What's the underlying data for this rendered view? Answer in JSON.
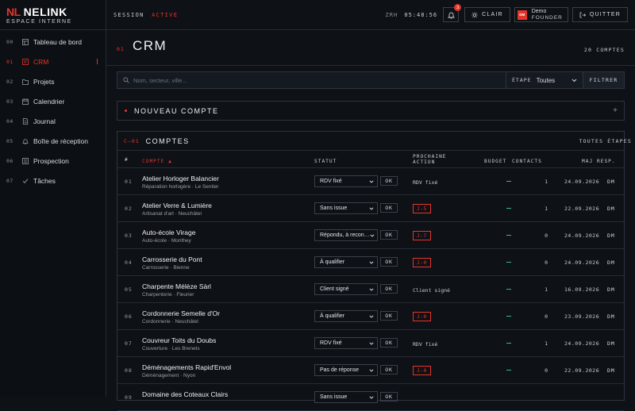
{
  "brand": {
    "logo": "NL",
    "name": "NELINK",
    "subtitle": "ESPACE INTERNE"
  },
  "nav": [
    {
      "num": "00",
      "label": "Tableau de bord",
      "icon": "dashboard-icon",
      "active": false
    },
    {
      "num": "01",
      "label": "CRM",
      "icon": "crm-icon",
      "active": true
    },
    {
      "num": "02",
      "label": "Projets",
      "icon": "folder-icon",
      "active": false
    },
    {
      "num": "03",
      "label": "Calendrier",
      "icon": "calendar-icon",
      "active": false
    },
    {
      "num": "04",
      "label": "Journal",
      "icon": "journal-icon",
      "active": false
    },
    {
      "num": "05",
      "label": "Boîte de réception",
      "icon": "bell-icon",
      "active": false
    },
    {
      "num": "06",
      "label": "Prospection",
      "icon": "prospection-icon",
      "active": false
    },
    {
      "num": "07",
      "label": "Tâches",
      "icon": "check-icon",
      "active": false
    }
  ],
  "topbar": {
    "session_label": "SESSION",
    "session_state": "ACTIVE",
    "timezone": "ZRH",
    "clock": "05:48:56",
    "notifications": "3",
    "theme_label": "CLAIR",
    "user_initials": "DM",
    "user_name": "Demo",
    "user_role": "FOUNDER",
    "logout_label": "QUITTER"
  },
  "page": {
    "num": "01",
    "title": "CRM",
    "count": "20 COMPTES"
  },
  "search": {
    "placeholder": "Nom, secteur, ville...",
    "stage_label": "ÉTAPE",
    "stage_value": "Toutes",
    "filter_label": "FILTRER"
  },
  "new_account": {
    "label": "NOUVEAU COMPTE",
    "plus": "+"
  },
  "accounts": {
    "num": "C—01",
    "title": "COMPTES",
    "all_stages": "TOUTES ÉTAPES",
    "columns": {
      "idx": "#",
      "account": "COMPTE ▲",
      "status": "STATUT",
      "next_action": [
        "PROCHAINE",
        "ACTION"
      ],
      "budget": "BUDGET",
      "contacts": "CONTACTS",
      "date": "MAJ",
      "resp": "RESP."
    },
    "ok_label": "OK",
    "rows": [
      {
        "idx": "01",
        "name": "Atelier Horloger Balancier",
        "sub": "Réparation horlogère · Le Sentier",
        "status": "RDV fixé",
        "next": "RDV fixé",
        "badge": false,
        "budget": "—",
        "contacts": "1",
        "date": "24.09.2026",
        "resp": "DM"
      },
      {
        "idx": "02",
        "name": "Atelier Verre & Lumière",
        "sub": "Artisanat d'art · Neuchâtel",
        "status": "Sans issue",
        "next": "J-5",
        "badge": true,
        "budget": "—",
        "contacts": "1",
        "date": "22.09.2026",
        "resp": "DM"
      },
      {
        "idx": "03",
        "name": "Auto-école Virage",
        "sub": "Auto-école · Monthey",
        "status": "Répondu, à recon…",
        "next": "J-7",
        "badge": true,
        "budget": "—",
        "contacts": "0",
        "date": "24.09.2026",
        "resp": "DM"
      },
      {
        "idx": "04",
        "name": "Carrosserie du Pont",
        "sub": "Carrosserie · Bienne",
        "status": "À qualifier",
        "next": "J-0",
        "badge": true,
        "budget": "—",
        "contacts": "0",
        "date": "24.09.2026",
        "resp": "DM"
      },
      {
        "idx": "05",
        "name": "Charpente Mélèze Sàrl",
        "sub": "Charpenterie · Fleurier",
        "status": "Client signé",
        "next": "Client signé",
        "badge": false,
        "budget": "—",
        "contacts": "1",
        "date": "16.09.2026",
        "resp": "DM"
      },
      {
        "idx": "06",
        "name": "Cordonnerie Semelle d'Or",
        "sub": "Cordonnerie · Neuchâtel",
        "status": "À qualifier",
        "next": "J-0",
        "badge": true,
        "budget": "—",
        "contacts": "0",
        "date": "23.09.2026",
        "resp": "DM"
      },
      {
        "idx": "07",
        "name": "Couvreur Toits du Doubs",
        "sub": "Couverture · Les Brenets",
        "status": "RDV fixé",
        "next": "RDV fixé",
        "badge": false,
        "budget": "—",
        "contacts": "1",
        "date": "24.09.2026",
        "resp": "DM"
      },
      {
        "idx": "08",
        "name": "Déménagements Rapid'Envol",
        "sub": "Déménagement · Nyon",
        "status": "Pas de réponse",
        "next": "J-0",
        "badge": true,
        "budget": "—",
        "contacts": "0",
        "date": "22.09.2026",
        "resp": "DM"
      },
      {
        "idx": "09",
        "name": "Domaine des Coteaux Clairs",
        "sub": "",
        "status": "Sans issue",
        "next": "",
        "badge": false,
        "budget": "",
        "contacts": "",
        "date": "",
        "resp": ""
      }
    ]
  },
  "colors": {
    "accent": "#e5352b",
    "budget": "#3fb68b",
    "bg": "#0e1116"
  }
}
